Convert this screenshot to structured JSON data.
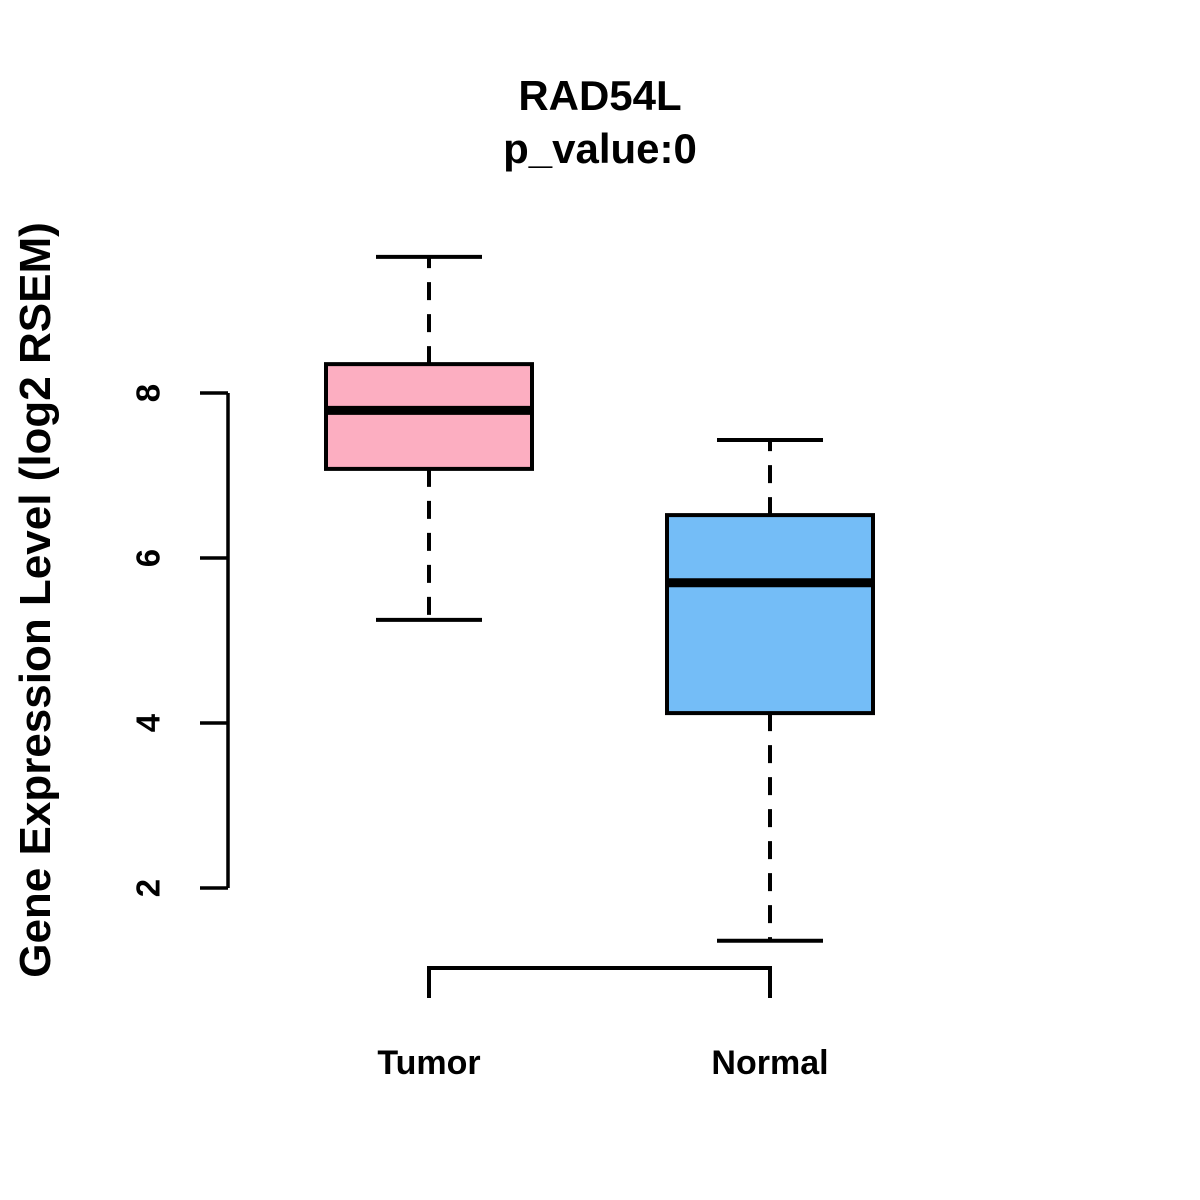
{
  "chart_data": {
    "type": "boxplot",
    "title": "RAD54L",
    "subtitle": "p_value:0",
    "p_value": 0,
    "ylabel": "Gene Expression Level (log2 RSEM)",
    "xlabel": "",
    "categories": [
      "Tumor",
      "Normal"
    ],
    "series": [
      {
        "name": "Tumor",
        "fill_color": "#FCAEC1",
        "whisker_low": 5.25,
        "q1": 7.08,
        "median": 7.79,
        "q3": 8.35,
        "whisker_high": 9.65
      },
      {
        "name": "Normal",
        "fill_color": "#74BDF7",
        "whisker_low": 1.36,
        "q1": 4.12,
        "median": 5.7,
        "q3": 6.52,
        "whisker_high": 7.43
      }
    ],
    "y_axis": {
      "ticks": [
        8,
        6,
        4,
        2
      ],
      "range": [
        1.0,
        9.9
      ]
    },
    "grid": "off",
    "legend": "none",
    "line_color": "#000000",
    "annotations": {
      "comparison_bracket": {
        "between": [
          "Tumor",
          "Normal"
        ]
      }
    }
  }
}
